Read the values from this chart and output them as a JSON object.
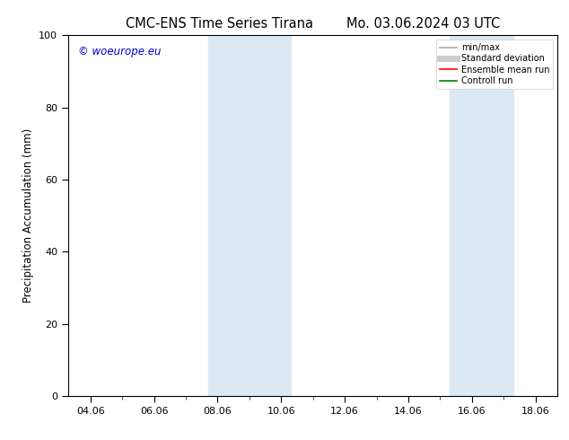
{
  "title_left": "CMC-ENS Time Series Tirana",
  "title_right": "Mo. 03.06.2024 03 UTC",
  "ylabel": "Precipitation Accumulation (mm)",
  "xlim_start": 3.3,
  "xlim_end": 18.7,
  "ylim": [
    0,
    100
  ],
  "xtick_labels": [
    "04.06",
    "06.06",
    "08.06",
    "10.06",
    "12.06",
    "14.06",
    "16.06",
    "18.06"
  ],
  "xtick_positions": [
    4,
    6,
    8,
    10,
    12,
    14,
    16,
    18
  ],
  "ytick_positions": [
    0,
    20,
    40,
    60,
    80,
    100
  ],
  "shaded_bands": [
    {
      "x_start": 7.7,
      "x_end": 10.3,
      "color": "#dce9f5"
    },
    {
      "x_start": 15.3,
      "x_end": 17.3,
      "color": "#dce9f5"
    }
  ],
  "watermark_text": "© woeurope.eu",
  "watermark_color": "#0000cc",
  "legend_items": [
    {
      "label": "min/max",
      "color": "#aaaaaa",
      "linestyle": "-",
      "linewidth": 1.2
    },
    {
      "label": "Standard deviation",
      "color": "#cccccc",
      "linestyle": "-",
      "linewidth": 5
    },
    {
      "label": "Ensemble mean run",
      "color": "#ff0000",
      "linestyle": "-",
      "linewidth": 1.2
    },
    {
      "label": "Controll run",
      "color": "#008000",
      "linestyle": "-",
      "linewidth": 1.2
    }
  ],
  "bg_color": "#ffffff",
  "title_fontsize": 10.5,
  "axis_fontsize": 8.5,
  "tick_fontsize": 8,
  "watermark_fontsize": 8.5
}
